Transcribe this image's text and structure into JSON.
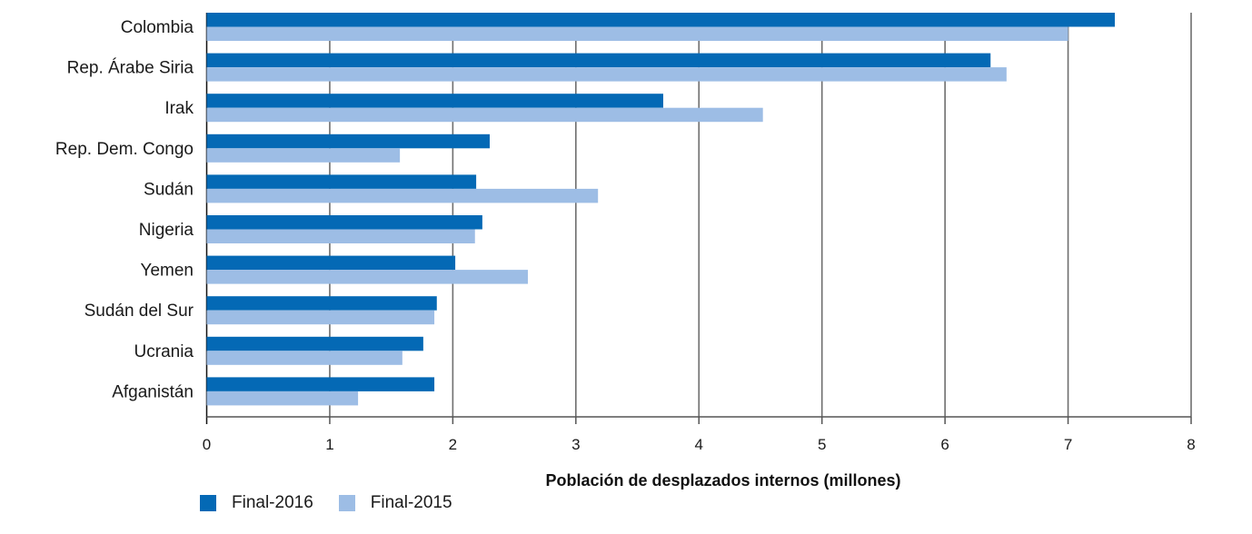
{
  "chart_data": {
    "type": "bar",
    "orientation": "horizontal",
    "title": "",
    "xlabel": "Población de desplazados internos (millones)",
    "ylabel": "",
    "xlim": [
      0,
      8
    ],
    "xticks": [
      "0",
      "1",
      "2",
      "3",
      "4",
      "5",
      "6",
      "7",
      "8"
    ],
    "grid": "vertical",
    "legend_position": "bottom-left",
    "categories": [
      "Colombia",
      "Rep. Árabe Siria",
      "Irak",
      "Rep. Dem. Congo",
      "Sudán",
      "Nigeria",
      "Yemen",
      "Sudán del Sur",
      "Ucrania",
      "Afganistán"
    ],
    "series": [
      {
        "name": "Final-2016",
        "color": "#0469b5",
        "values": [
          7.38,
          6.37,
          3.71,
          2.3,
          2.19,
          2.24,
          2.02,
          1.87,
          1.76,
          1.85
        ]
      },
      {
        "name": "Final-2015",
        "color": "#9dbde5",
        "values": [
          7.0,
          6.5,
          4.52,
          1.57,
          3.18,
          2.18,
          2.61,
          1.85,
          1.59,
          1.23
        ]
      }
    ]
  }
}
